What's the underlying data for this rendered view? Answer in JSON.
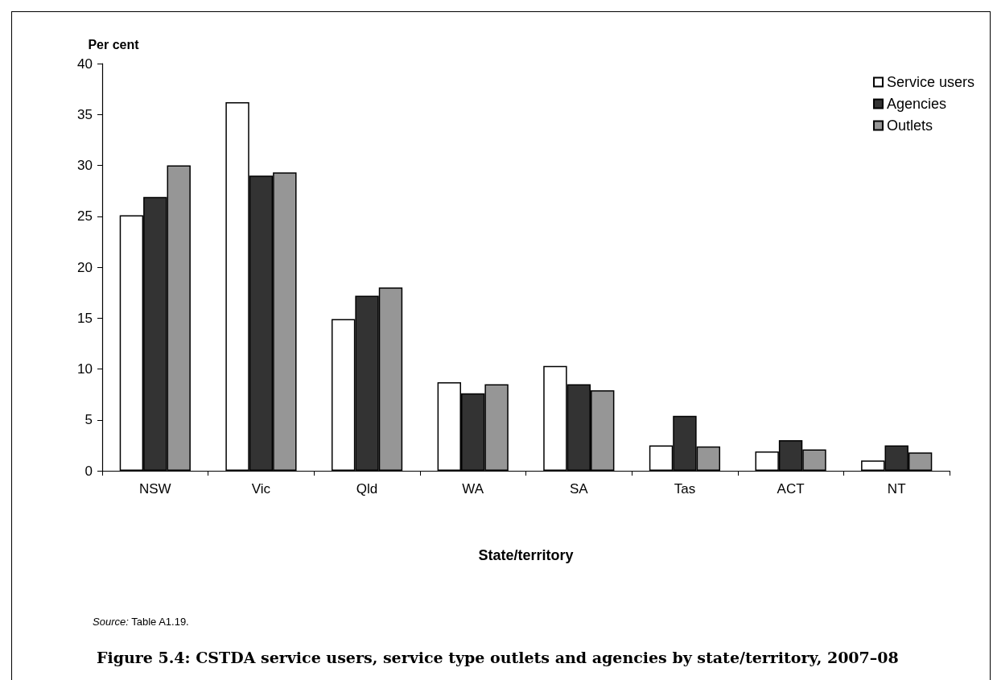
{
  "chart_data": {
    "type": "bar",
    "title": "Figure 5.4: CSTDA service users, service type outlets and agencies by state/territory, 2007–08",
    "xlabel": "State/territory",
    "ylabel": "Per cent",
    "annotations": [
      "Source: Table A1.19."
    ],
    "categories": [
      "NSW",
      "Vic",
      "Qld",
      "WA",
      "SA",
      "Tas",
      "ACT",
      "NT"
    ],
    "series": [
      {
        "name": "Service users",
        "color": "#ffffff",
        "values": [
          25.1,
          36.2,
          14.9,
          8.7,
          10.3,
          2.5,
          1.9,
          1.0
        ]
      },
      {
        "name": "Agencies",
        "color": "#333333",
        "values": [
          26.9,
          29.0,
          17.2,
          7.6,
          8.5,
          5.4,
          3.0,
          2.5
        ]
      },
      {
        "name": "Outlets",
        "color": "#969696",
        "values": [
          30.0,
          29.3,
          18.0,
          8.5,
          7.9,
          2.4,
          2.1,
          1.8
        ]
      }
    ],
    "ylim": [
      0,
      40
    ],
    "yticks": [
      0,
      5,
      10,
      15,
      20,
      25,
      30,
      35,
      40
    ],
    "legend": "top right"
  }
}
